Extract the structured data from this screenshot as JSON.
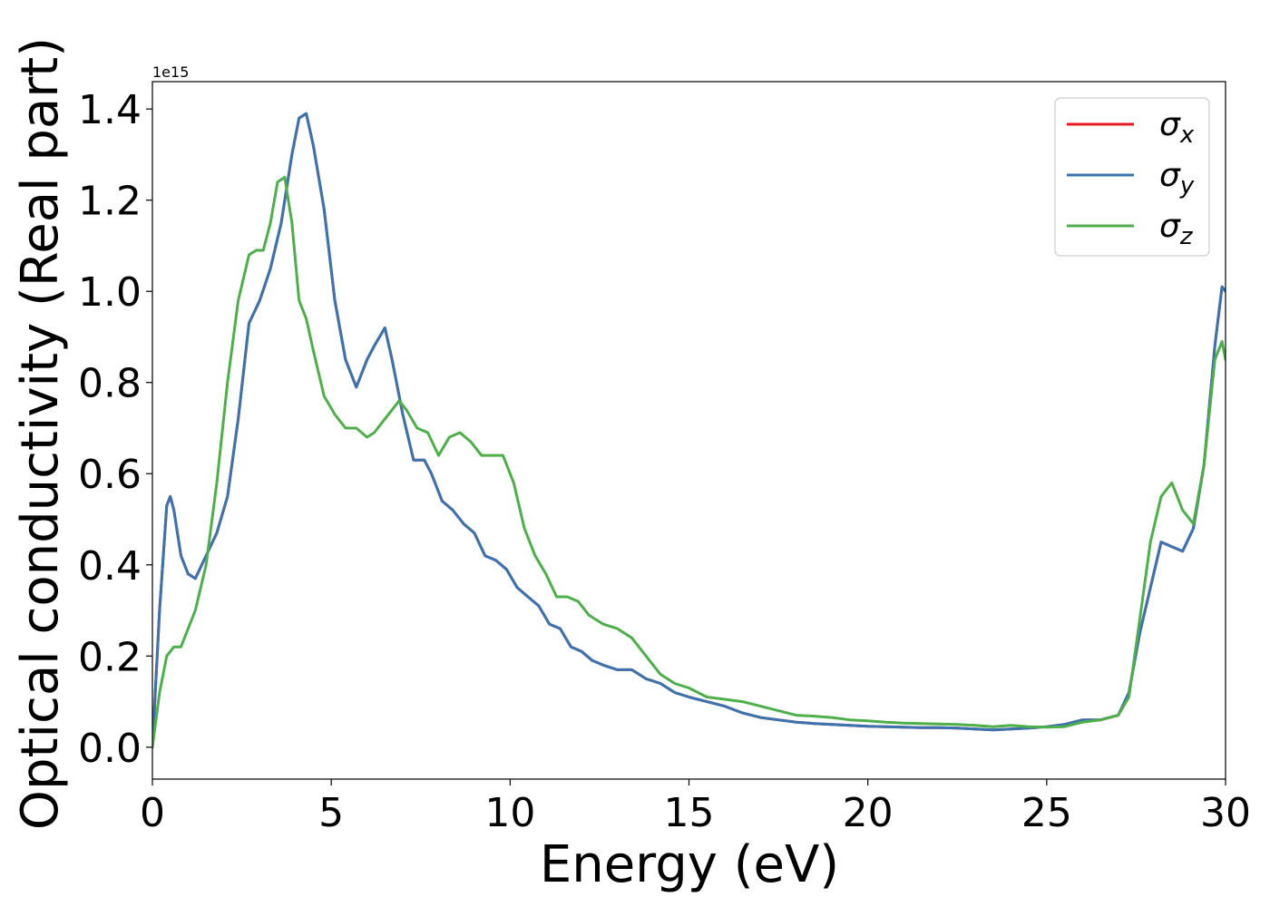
{
  "chart_data": {
    "type": "line",
    "title": "",
    "xlabel": "Energy (eV)",
    "ylabel": "Optical conductivity (Real part)",
    "y_offset_text": "1e15",
    "xlim": [
      0,
      30
    ],
    "ylim": [
      -0.07,
      1.46
    ],
    "xticks": [
      0,
      5,
      10,
      15,
      20,
      25,
      30
    ],
    "xtick_labels": [
      "0",
      "5",
      "10",
      "15",
      "20",
      "25",
      "30"
    ],
    "yticks": [
      0.0,
      0.2,
      0.4,
      0.6,
      0.8,
      1.0,
      1.2,
      1.4
    ],
    "ytick_labels": [
      "0.0",
      "0.2",
      "0.4",
      "0.6",
      "0.8",
      "1.0",
      "1.2",
      "1.4"
    ],
    "grid": false,
    "legend_position": "top-right",
    "series": [
      {
        "name": "σx",
        "legend_base": "σ",
        "legend_sub": "x",
        "color": "#e41a1c",
        "x": [
          0,
          0.2,
          0.4,
          0.5,
          0.6,
          0.8,
          1.0,
          1.2,
          1.5,
          1.8,
          2.1,
          2.4,
          2.7,
          3.0,
          3.3,
          3.6,
          3.9,
          4.1,
          4.3,
          4.5,
          4.8,
          5.1,
          5.4,
          5.7,
          6.0,
          6.2,
          6.5,
          6.7,
          7.0,
          7.3,
          7.6,
          7.8,
          8.1,
          8.4,
          8.7,
          9.0,
          9.3,
          9.6,
          9.9,
          10.2,
          10.5,
          10.8,
          11.1,
          11.4,
          11.7,
          12.0,
          12.3,
          12.6,
          13.0,
          13.4,
          13.8,
          14.2,
          14.6,
          15.0,
          15.5,
          16.0,
          16.5,
          17.0,
          17.5,
          18.0,
          18.5,
          19.0,
          19.5,
          20.0,
          20.5,
          21.0,
          21.5,
          22.0,
          22.5,
          23.0,
          23.5,
          24.0,
          24.5,
          25.0,
          25.5,
          26.0,
          26.5,
          27.0,
          27.3,
          27.6,
          27.9,
          28.2,
          28.5,
          28.8,
          29.1,
          29.4,
          29.7,
          29.9,
          30.0
        ],
        "values": [
          0.0,
          0.3,
          0.53,
          0.55,
          0.52,
          0.42,
          0.38,
          0.37,
          0.42,
          0.47,
          0.55,
          0.72,
          0.93,
          0.98,
          1.05,
          1.15,
          1.3,
          1.38,
          1.39,
          1.32,
          1.18,
          0.98,
          0.85,
          0.79,
          0.85,
          0.88,
          0.92,
          0.85,
          0.73,
          0.63,
          0.63,
          0.6,
          0.54,
          0.52,
          0.49,
          0.47,
          0.42,
          0.41,
          0.39,
          0.35,
          0.33,
          0.31,
          0.27,
          0.26,
          0.22,
          0.21,
          0.19,
          0.18,
          0.17,
          0.17,
          0.15,
          0.14,
          0.12,
          0.11,
          0.1,
          0.09,
          0.075,
          0.065,
          0.06,
          0.055,
          0.052,
          0.05,
          0.048,
          0.046,
          0.045,
          0.044,
          0.043,
          0.043,
          0.042,
          0.04,
          0.038,
          0.04,
          0.042,
          0.045,
          0.05,
          0.06,
          0.06,
          0.07,
          0.12,
          0.25,
          0.35,
          0.45,
          0.44,
          0.43,
          0.48,
          0.62,
          0.88,
          1.01,
          1.0
        ]
      },
      {
        "name": "σy",
        "legend_base": "σ",
        "legend_sub": "y",
        "color": "#3a74b0",
        "x": [
          0,
          0.2,
          0.4,
          0.5,
          0.6,
          0.8,
          1.0,
          1.2,
          1.5,
          1.8,
          2.1,
          2.4,
          2.7,
          3.0,
          3.3,
          3.6,
          3.9,
          4.1,
          4.3,
          4.5,
          4.8,
          5.1,
          5.4,
          5.7,
          6.0,
          6.2,
          6.5,
          6.7,
          7.0,
          7.3,
          7.6,
          7.8,
          8.1,
          8.4,
          8.7,
          9.0,
          9.3,
          9.6,
          9.9,
          10.2,
          10.5,
          10.8,
          11.1,
          11.4,
          11.7,
          12.0,
          12.3,
          12.6,
          13.0,
          13.4,
          13.8,
          14.2,
          14.6,
          15.0,
          15.5,
          16.0,
          16.5,
          17.0,
          17.5,
          18.0,
          18.5,
          19.0,
          19.5,
          20.0,
          20.5,
          21.0,
          21.5,
          22.0,
          22.5,
          23.0,
          23.5,
          24.0,
          24.5,
          25.0,
          25.5,
          26.0,
          26.5,
          27.0,
          27.3,
          27.6,
          27.9,
          28.2,
          28.5,
          28.8,
          29.1,
          29.4,
          29.7,
          29.9,
          30.0
        ],
        "values": [
          0.0,
          0.3,
          0.53,
          0.55,
          0.52,
          0.42,
          0.38,
          0.37,
          0.42,
          0.47,
          0.55,
          0.72,
          0.93,
          0.98,
          1.05,
          1.15,
          1.3,
          1.38,
          1.39,
          1.32,
          1.18,
          0.98,
          0.85,
          0.79,
          0.85,
          0.88,
          0.92,
          0.85,
          0.73,
          0.63,
          0.63,
          0.6,
          0.54,
          0.52,
          0.49,
          0.47,
          0.42,
          0.41,
          0.39,
          0.35,
          0.33,
          0.31,
          0.27,
          0.26,
          0.22,
          0.21,
          0.19,
          0.18,
          0.17,
          0.17,
          0.15,
          0.14,
          0.12,
          0.11,
          0.1,
          0.09,
          0.075,
          0.065,
          0.06,
          0.055,
          0.052,
          0.05,
          0.048,
          0.046,
          0.045,
          0.044,
          0.043,
          0.043,
          0.042,
          0.04,
          0.038,
          0.04,
          0.042,
          0.045,
          0.05,
          0.06,
          0.06,
          0.07,
          0.12,
          0.25,
          0.35,
          0.45,
          0.44,
          0.43,
          0.48,
          0.62,
          0.88,
          1.01,
          1.0
        ]
      },
      {
        "name": "σz",
        "legend_base": "σ",
        "legend_sub": "z",
        "color": "#4daf4a",
        "x": [
          0,
          0.2,
          0.4,
          0.6,
          0.8,
          1.0,
          1.2,
          1.5,
          1.8,
          2.1,
          2.4,
          2.7,
          2.9,
          3.1,
          3.3,
          3.5,
          3.7,
          3.9,
          4.1,
          4.3,
          4.5,
          4.8,
          5.1,
          5.4,
          5.7,
          6.0,
          6.2,
          6.5,
          6.9,
          7.1,
          7.4,
          7.7,
          8.0,
          8.3,
          8.6,
          8.9,
          9.2,
          9.5,
          9.8,
          10.1,
          10.4,
          10.7,
          11.0,
          11.3,
          11.6,
          11.9,
          12.2,
          12.6,
          13.0,
          13.4,
          13.8,
          14.2,
          14.6,
          15.0,
          15.5,
          16.0,
          16.5,
          17.0,
          17.5,
          18.0,
          18.5,
          19.0,
          19.5,
          20.0,
          20.5,
          21.0,
          21.5,
          22.0,
          22.5,
          23.0,
          23.5,
          24.0,
          24.5,
          25.0,
          25.5,
          26.0,
          26.5,
          27.0,
          27.3,
          27.6,
          27.9,
          28.2,
          28.5,
          28.8,
          29.1,
          29.4,
          29.7,
          29.9,
          30.0
        ],
        "values": [
          0.0,
          0.12,
          0.2,
          0.22,
          0.22,
          0.26,
          0.3,
          0.4,
          0.58,
          0.8,
          0.98,
          1.08,
          1.09,
          1.09,
          1.15,
          1.24,
          1.25,
          1.15,
          0.98,
          0.94,
          0.87,
          0.77,
          0.73,
          0.7,
          0.7,
          0.68,
          0.69,
          0.72,
          0.76,
          0.74,
          0.7,
          0.69,
          0.64,
          0.68,
          0.69,
          0.67,
          0.64,
          0.64,
          0.64,
          0.58,
          0.48,
          0.42,
          0.38,
          0.33,
          0.33,
          0.32,
          0.29,
          0.27,
          0.26,
          0.24,
          0.2,
          0.16,
          0.14,
          0.13,
          0.11,
          0.105,
          0.1,
          0.09,
          0.08,
          0.07,
          0.068,
          0.065,
          0.06,
          0.058,
          0.055,
          0.053,
          0.052,
          0.051,
          0.05,
          0.048,
          0.045,
          0.048,
          0.045,
          0.044,
          0.045,
          0.055,
          0.06,
          0.07,
          0.11,
          0.28,
          0.45,
          0.55,
          0.58,
          0.52,
          0.49,
          0.62,
          0.85,
          0.89,
          0.85
        ]
      }
    ]
  }
}
